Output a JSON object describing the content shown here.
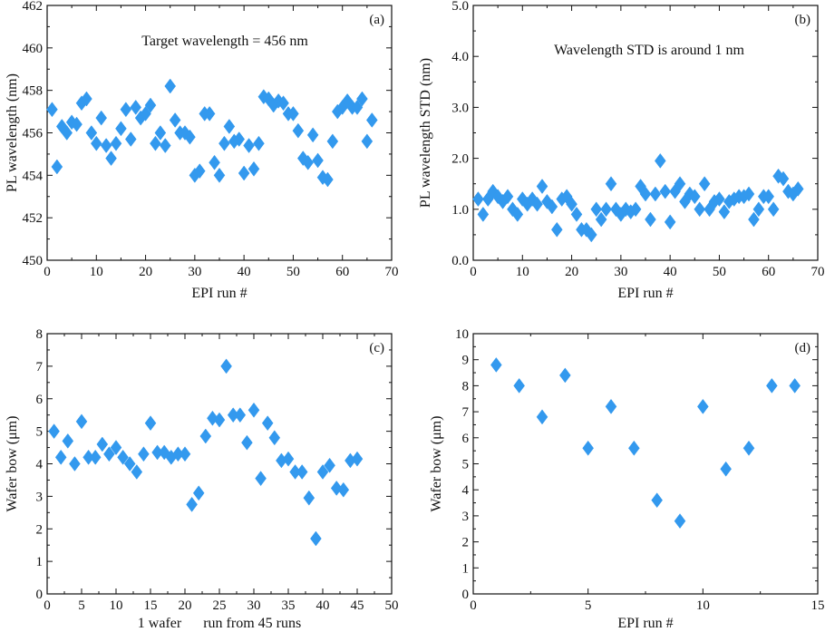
{
  "chart_data": [
    {
      "type": "scatter",
      "panel_label": "(a)",
      "annotation": "Target wavelength = 456 nm",
      "xlabel": "EPI run #",
      "ylabel": "PL wavelength (nm)",
      "xlim": [
        0,
        70
      ],
      "ylim": [
        450,
        462
      ],
      "xticks": [
        0,
        10,
        20,
        30,
        40,
        50,
        60,
        70
      ],
      "yticks": [
        450,
        452,
        454,
        456,
        458,
        460,
        462
      ],
      "marker_color": "#3399ee",
      "series": [
        {
          "x": [
            1,
            2,
            3,
            4,
            5,
            6,
            7,
            8,
            9,
            10,
            11,
            12,
            13,
            14,
            15,
            16,
            17,
            18,
            19,
            20,
            21,
            22,
            23,
            24,
            25,
            26,
            27,
            28,
            29,
            30,
            31,
            32,
            33,
            34,
            35,
            36,
            37,
            38,
            39,
            40,
            41,
            42,
            43,
            44,
            45,
            46,
            47,
            48,
            49,
            50,
            51,
            52,
            53,
            54,
            55,
            56,
            57,
            58,
            59,
            60,
            61,
            62,
            63,
            64,
            65,
            66
          ],
          "y": [
            457.1,
            454.4,
            456.3,
            456.0,
            456.5,
            456.4,
            457.4,
            457.6,
            456.0,
            455.5,
            456.7,
            455.4,
            454.8,
            455.5,
            456.2,
            457.1,
            455.7,
            457.2,
            456.7,
            456.9,
            457.3,
            455.5,
            456.0,
            455.4,
            458.2,
            456.6,
            456.0,
            456.0,
            455.8,
            454.0,
            454.2,
            456.9,
            456.9,
            454.6,
            454.0,
            455.5,
            456.3,
            455.6,
            455.7,
            454.1,
            455.4,
            454.3,
            455.5,
            457.7,
            457.6,
            457.3,
            457.5,
            457.4,
            456.9,
            456.9,
            456.1,
            454.8,
            454.6,
            455.9,
            454.7,
            453.9,
            453.8,
            455.6,
            457.0,
            457.2,
            457.5,
            457.2,
            457.2,
            457.6,
            455.6,
            456.6
          ]
        }
      ]
    },
    {
      "type": "scatter",
      "panel_label": "(b)",
      "annotation": "Wavelength STD is around 1 nm",
      "xlabel": "EPI run #",
      "ylabel": "PL wavelength STD (nm)",
      "xlim": [
        0,
        70
      ],
      "ylim": [
        0.0,
        5.0
      ],
      "xticks": [
        0,
        10,
        20,
        30,
        40,
        50,
        60,
        70
      ],
      "yticks": [
        "0.0",
        "1.0",
        "2.0",
        "3.0",
        "4.0",
        "5.0"
      ],
      "marker_color": "#3399ee",
      "series": [
        {
          "x": [
            1,
            2,
            3,
            4,
            5,
            6,
            7,
            8,
            9,
            10,
            11,
            12,
            13,
            14,
            15,
            16,
            17,
            18,
            19,
            20,
            21,
            22,
            23,
            24,
            25,
            26,
            27,
            28,
            29,
            30,
            31,
            32,
            33,
            34,
            35,
            36,
            37,
            38,
            39,
            40,
            41,
            42,
            43,
            44,
            45,
            46,
            47,
            48,
            49,
            50,
            51,
            52,
            53,
            54,
            55,
            56,
            57,
            58,
            59,
            60,
            61,
            62,
            63,
            64,
            65,
            66
          ],
          "y": [
            1.2,
            0.9,
            1.2,
            1.35,
            1.25,
            1.15,
            1.25,
            1.0,
            0.9,
            1.2,
            1.1,
            1.2,
            1.1,
            1.45,
            1.15,
            1.05,
            0.6,
            1.2,
            1.25,
            1.1,
            0.9,
            0.6,
            0.6,
            0.5,
            1.0,
            0.8,
            1.0,
            1.5,
            1.0,
            0.9,
            1.0,
            0.95,
            1.0,
            1.45,
            1.3,
            0.8,
            1.3,
            1.95,
            1.35,
            0.75,
            1.35,
            1.5,
            1.15,
            1.3,
            1.25,
            1.0,
            1.5,
            1.0,
            1.15,
            1.2,
            0.95,
            1.15,
            1.2,
            1.25,
            1.25,
            1.3,
            0.8,
            1.0,
            1.25,
            1.25,
            1.0,
            1.65,
            1.6,
            1.35,
            1.3,
            1.4
          ]
        }
      ]
    },
    {
      "type": "scatter",
      "panel_label": "(c)",
      "xlabel": "1 wafer      run from 45 runs",
      "ylabel": "Wafer bow (μm)",
      "xlim": [
        0,
        50
      ],
      "ylim": [
        0,
        8
      ],
      "xticks": [
        0,
        5,
        10,
        15,
        20,
        25,
        30,
        35,
        40,
        45,
        50
      ],
      "yticks": [
        0,
        1,
        2,
        3,
        4,
        5,
        6,
        7,
        8
      ],
      "marker_color": "#3399ee",
      "series": [
        {
          "x": [
            1,
            2,
            3,
            4,
            5,
            6,
            7,
            8,
            9,
            10,
            11,
            12,
            13,
            14,
            15,
            16,
            17,
            18,
            19,
            20,
            21,
            22,
            23,
            24,
            25,
            26,
            27,
            28,
            29,
            30,
            31,
            32,
            33,
            34,
            35,
            36,
            37,
            38,
            39,
            40,
            41,
            42,
            43,
            44,
            45
          ],
          "y": [
            5.0,
            4.2,
            4.7,
            4.0,
            5.3,
            4.2,
            4.2,
            4.6,
            4.3,
            4.5,
            4.2,
            4.0,
            3.75,
            4.3,
            5.25,
            4.35,
            4.35,
            4.2,
            4.3,
            4.3,
            2.75,
            3.1,
            4.85,
            5.4,
            5.35,
            7.0,
            5.5,
            5.5,
            4.65,
            5.65,
            3.55,
            5.25,
            4.8,
            4.1,
            4.15,
            3.75,
            3.75,
            2.95,
            1.7,
            3.75,
            3.95,
            3.25,
            3.2,
            4.1,
            4.15
          ]
        }
      ]
    },
    {
      "type": "scatter",
      "panel_label": "(d)",
      "xlabel": "EPI run #",
      "ylabel": "Wafer bow (μm)",
      "xlim": [
        0,
        15
      ],
      "ylim": [
        0,
        10
      ],
      "xticks": [
        0,
        5,
        10,
        15
      ],
      "yticks": [
        0,
        1,
        2,
        3,
        4,
        5,
        6,
        7,
        8,
        9,
        10
      ],
      "marker_color": "#3399ee",
      "series": [
        {
          "x": [
            1,
            2,
            3,
            4,
            5,
            6,
            7,
            8,
            9,
            10,
            11,
            12,
            13,
            14
          ],
          "y": [
            8.8,
            8.0,
            6.8,
            8.4,
            5.6,
            7.2,
            5.6,
            3.6,
            2.8,
            7.2,
            4.8,
            5.6,
            8.0,
            8.0
          ]
        }
      ]
    }
  ]
}
